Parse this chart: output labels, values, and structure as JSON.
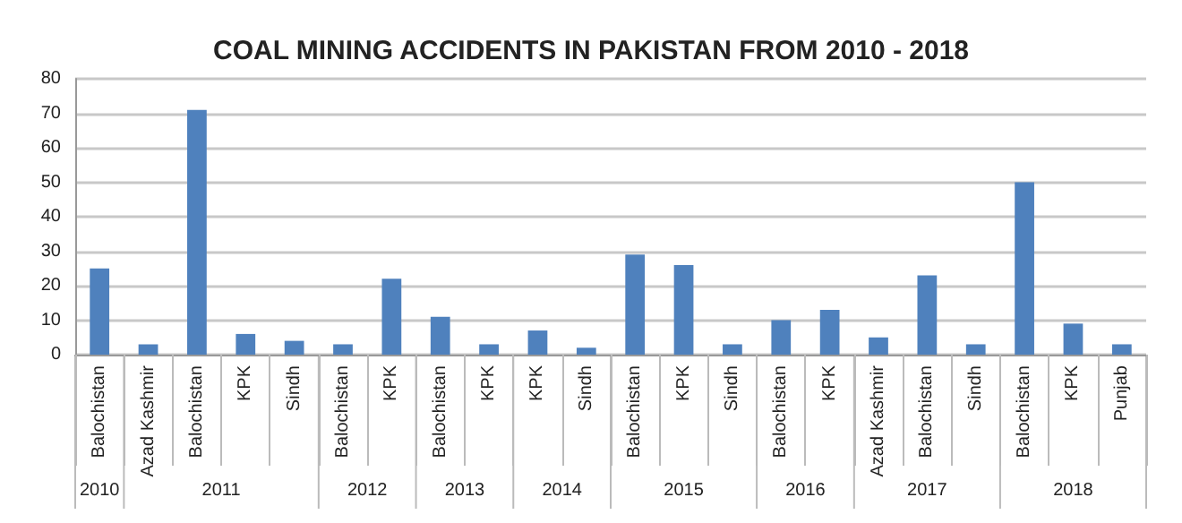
{
  "chart_data": {
    "type": "bar",
    "title": "COAL MINING ACCIDENTS IN PAKISTAN FROM 2010 - 2018",
    "categories": [
      "Balochistan",
      "Azad Kashmir",
      "Balochistan",
      "KPK",
      "Sindh",
      "Balochistan",
      "KPK",
      "Balochistan",
      "KPK",
      "KPK",
      "Sindh",
      "Balochistan",
      "KPK",
      "Sindh",
      "Balochistan",
      "KPK",
      "Azad Kashmir",
      "Balochistan",
      "Sindh",
      "Balochistan",
      "KPK",
      "Punjab"
    ],
    "values": [
      25,
      3,
      71,
      6,
      4,
      3,
      22,
      11,
      3,
      7,
      2,
      29,
      26,
      3,
      10,
      13,
      5,
      23,
      3,
      50,
      9,
      3
    ],
    "color": "#4f81bd",
    "ylim": [
      0,
      80
    ],
    "yticks": [
      0,
      10,
      20,
      30,
      40,
      50,
      60,
      70,
      80
    ],
    "grid": "y",
    "annotations": [
      "2010",
      "2011",
      "2012",
      "2013",
      "2014",
      "2015",
      "2016",
      "2017",
      "2018"
    ]
  }
}
